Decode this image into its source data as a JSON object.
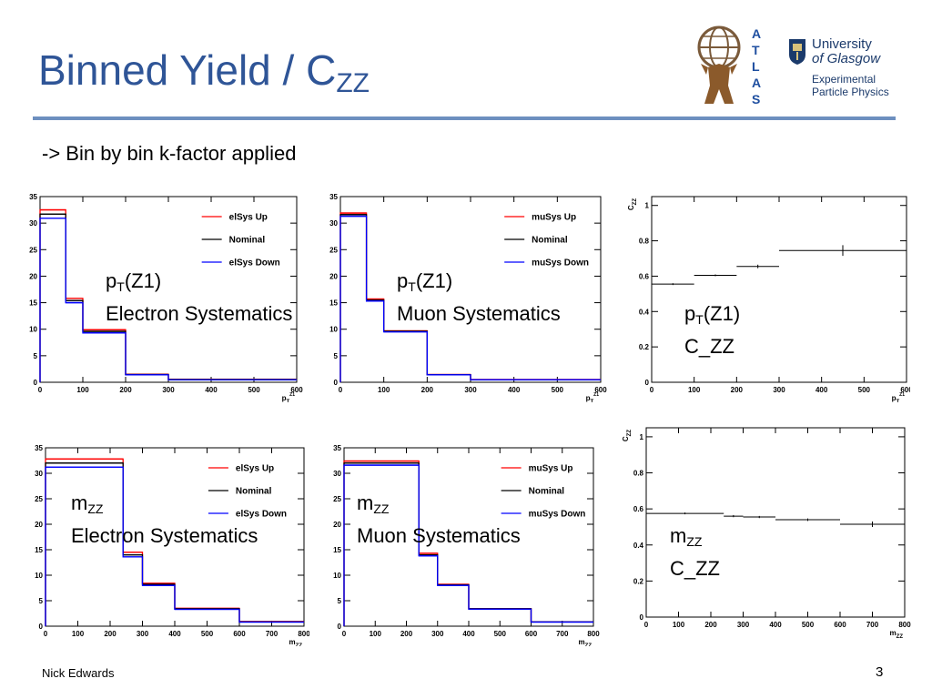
{
  "slide": {
    "title_main": "Binned Yield / C",
    "title_sub": "ZZ",
    "bullet": "-> Bin by bin k-factor applied",
    "author": "Nick Edwards",
    "page_number": "3"
  },
  "logos": {
    "atlas_letters": [
      "A",
      "T",
      "L",
      "A",
      "S"
    ],
    "glasgow_line1": "University",
    "glasgow_line2": "of Glasgow",
    "glasgow_line3": "Experimental",
    "glasgow_line4": "Particle Physics"
  },
  "overlays": [
    {
      "main": "p",
      "sub": "T",
      "rest": "(Z1)",
      "line2": "Electron Systematics"
    },
    {
      "main": "p",
      "sub": "T",
      "rest": "(Z1)",
      "line2": "Muon Systematics"
    },
    {
      "main": "p",
      "sub": "T",
      "rest": "(Z1)",
      "line2": "C_ZZ"
    },
    {
      "main": "m",
      "sub": "ZZ",
      "rest": "",
      "line2": "Electron Systematics"
    },
    {
      "main": "m",
      "sub": "ZZ",
      "rest": "",
      "line2": "Muon Systematics"
    },
    {
      "main": "m",
      "sub": "ZZ",
      "rest": "",
      "line2": "C_ZZ"
    }
  ],
  "colors": {
    "title": "#2f5597",
    "up": "#ff0000",
    "nominal": "#000000",
    "down": "#0000ff"
  },
  "chart_data": [
    {
      "type": "histogram",
      "edges": [
        0,
        60,
        100,
        200,
        300,
        600
      ],
      "xlim": [
        0,
        600
      ],
      "ylim": [
        0,
        35
      ],
      "xticks": [
        0,
        100,
        200,
        300,
        400,
        500,
        600
      ],
      "yticks": [
        0,
        5,
        10,
        15,
        20,
        25,
        30,
        35
      ],
      "xlabel_main": "p",
      "xlabel_sup": "Z1",
      "xlabel_sub": "T",
      "series": [
        {
          "name": "elSys Up",
          "color": "#ff0000",
          "values": [
            32.5,
            15.8,
            9.9,
            1.5,
            0.55
          ]
        },
        {
          "name": "Nominal",
          "color": "#000000",
          "values": [
            31.7,
            15.4,
            9.6,
            1.45,
            0.5
          ]
        },
        {
          "name": "elSys Down",
          "color": "#0000ff",
          "values": [
            30.9,
            15.0,
            9.3,
            1.4,
            0.45
          ]
        }
      ]
    },
    {
      "type": "histogram",
      "edges": [
        0,
        60,
        100,
        200,
        300,
        600
      ],
      "xlim": [
        0,
        600
      ],
      "ylim": [
        0,
        35
      ],
      "xticks": [
        0,
        100,
        200,
        300,
        400,
        500,
        600
      ],
      "yticks": [
        0,
        5,
        10,
        15,
        20,
        25,
        30,
        35
      ],
      "xlabel_main": "p",
      "xlabel_sup": "Z1",
      "xlabel_sub": "T",
      "series": [
        {
          "name": "muSys Up",
          "color": "#ff0000",
          "values": [
            31.9,
            15.7,
            9.7,
            1.45,
            0.5
          ]
        },
        {
          "name": "Nominal",
          "color": "#000000",
          "values": [
            31.6,
            15.5,
            9.6,
            1.42,
            0.48
          ]
        },
        {
          "name": "muSys Down",
          "color": "#0000ff",
          "values": [
            31.3,
            15.3,
            9.5,
            1.4,
            0.46
          ]
        }
      ]
    },
    {
      "type": "errorbar",
      "edges": [
        0,
        100,
        200,
        300,
        600
      ],
      "xlim": [
        0,
        600
      ],
      "ylim": [
        0,
        1.05
      ],
      "xticks": [
        0,
        100,
        200,
        300,
        400,
        500,
        600
      ],
      "yticks": [
        0,
        0.2,
        0.4,
        0.6,
        0.8,
        1
      ],
      "ytick_labels": [
        "0",
        "0.2",
        "0.4",
        "0.6",
        "0.8",
        "1"
      ],
      "ylabel_main": "C",
      "ylabel_sub": "ZZ",
      "xlabel_main": "p",
      "xlabel_sup": "Z1",
      "xlabel_sub": "T",
      "series": [
        {
          "color": "#000000",
          "values": [
            0.555,
            0.605,
            0.655,
            0.745
          ],
          "errors": [
            0.004,
            0.005,
            0.01,
            0.03
          ]
        }
      ]
    },
    {
      "type": "histogram",
      "edges": [
        0,
        240,
        300,
        400,
        600,
        800
      ],
      "xlim": [
        0,
        800
      ],
      "ylim": [
        0,
        35
      ],
      "xticks": [
        0,
        100,
        200,
        300,
        400,
        500,
        600,
        700,
        800
      ],
      "yticks": [
        0,
        5,
        10,
        15,
        20,
        25,
        30,
        35
      ],
      "xlabel_main": "m",
      "xlabel_sub": "ZZ",
      "series": [
        {
          "name": "elSys Up",
          "color": "#ff0000",
          "values": [
            32.8,
            14.5,
            8.4,
            3.5,
            0.9
          ]
        },
        {
          "name": "Nominal",
          "color": "#000000",
          "values": [
            32.0,
            14.0,
            8.2,
            3.4,
            0.85
          ]
        },
        {
          "name": "elSys Down",
          "color": "#0000ff",
          "values": [
            31.2,
            13.6,
            8.0,
            3.3,
            0.8
          ]
        }
      ]
    },
    {
      "type": "histogram",
      "edges": [
        0,
        240,
        300,
        400,
        600,
        800
      ],
      "xlim": [
        0,
        800
      ],
      "ylim": [
        0,
        35
      ],
      "xticks": [
        0,
        100,
        200,
        300,
        400,
        500,
        600,
        700,
        800
      ],
      "yticks": [
        0,
        5,
        10,
        15,
        20,
        25,
        30,
        35
      ],
      "xlabel_main": "m",
      "xlabel_sub": "ZZ",
      "series": [
        {
          "name": "muSys Up",
          "color": "#ff0000",
          "values": [
            32.4,
            14.3,
            8.2,
            3.45,
            0.85
          ]
        },
        {
          "name": "Nominal",
          "color": "#000000",
          "values": [
            32.0,
            14.0,
            8.1,
            3.4,
            0.83
          ]
        },
        {
          "name": "muSys Down",
          "color": "#0000ff",
          "values": [
            31.6,
            13.8,
            8.0,
            3.35,
            0.8
          ]
        }
      ]
    },
    {
      "type": "errorbar",
      "edges": [
        0,
        240,
        300,
        400,
        600,
        800
      ],
      "xlim": [
        0,
        800
      ],
      "ylim": [
        0,
        1.05
      ],
      "xticks": [
        0,
        100,
        200,
        300,
        400,
        500,
        600,
        700,
        800
      ],
      "yticks": [
        0,
        0.2,
        0.4,
        0.6,
        0.8,
        1
      ],
      "ytick_labels": [
        "0",
        "0.2",
        "0.4",
        "0.6",
        "0.8",
        "1"
      ],
      "ylabel_main": "C",
      "ylabel_sub": "ZZ",
      "xlabel_main": "m",
      "xlabel_sub": "ZZ",
      "series": [
        {
          "color": "#000000",
          "values": [
            0.575,
            0.56,
            0.555,
            0.54,
            0.515
          ],
          "errors": [
            0.004,
            0.006,
            0.006,
            0.007,
            0.015
          ]
        }
      ]
    }
  ]
}
